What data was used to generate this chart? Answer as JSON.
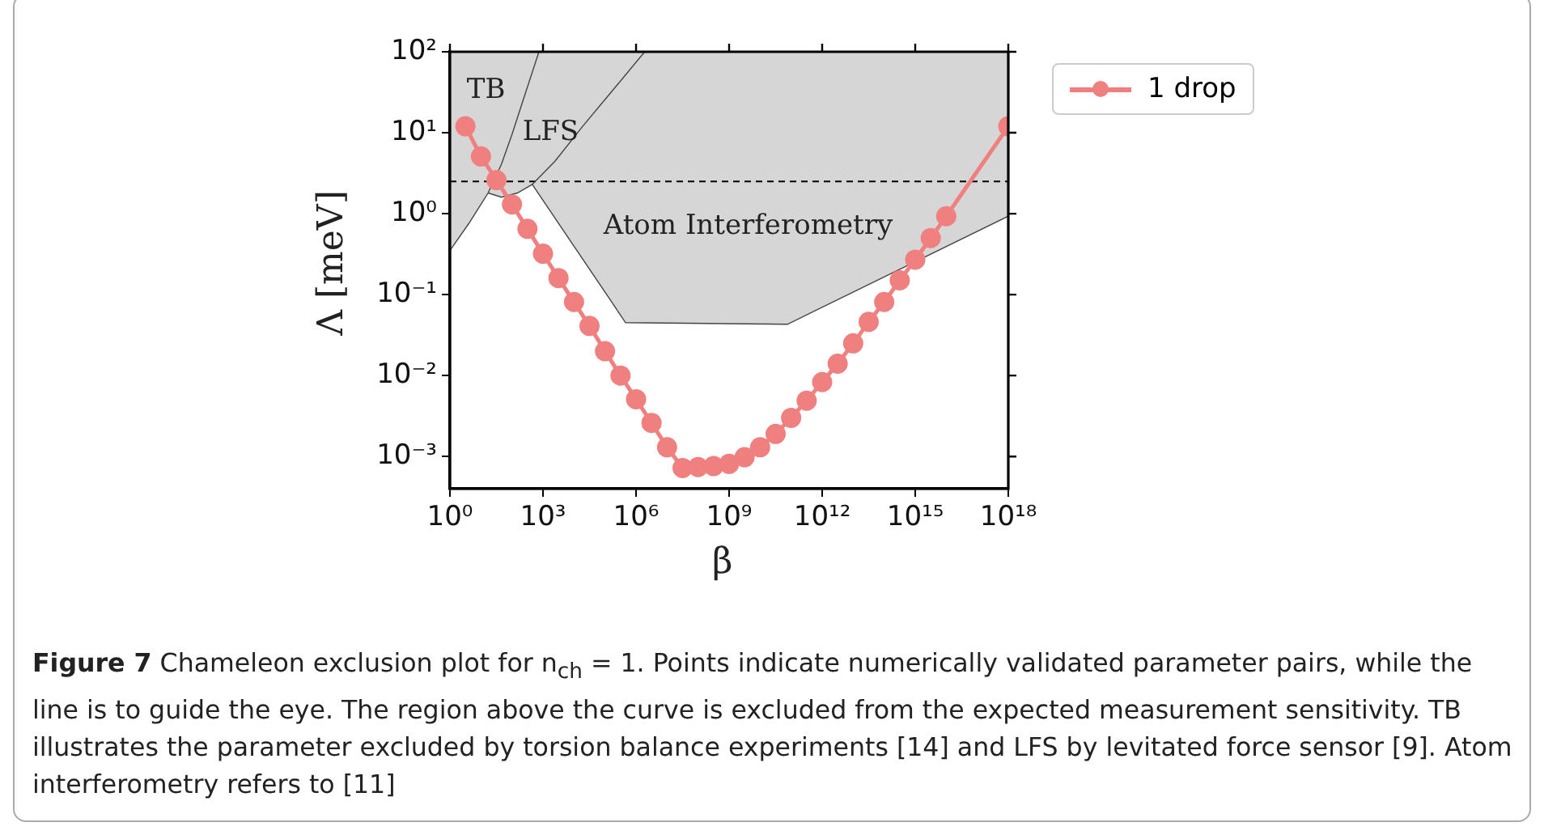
{
  "chart_data": {
    "type": "line",
    "xlabel": "β",
    "ylabel": "Λ [meV]",
    "log": "xy",
    "grid": false,
    "legend": "right",
    "marker": "circle",
    "xlim": [
      1,
      1e+18
    ],
    "ylim": [
      0.0004,
      100
    ],
    "xticks": [
      {
        "value": 1,
        "label": "10⁰"
      },
      {
        "value": 1000.0,
        "label": "10³"
      },
      {
        "value": 1000000.0,
        "label": "10⁶"
      },
      {
        "value": 1000000000.0,
        "label": "10⁹"
      },
      {
        "value": 1000000000000.0,
        "label": "10¹²"
      },
      {
        "value": 1000000000000000.0,
        "label": "10¹⁵"
      },
      {
        "value": 1e+18,
        "label": "10¹⁸"
      }
    ],
    "yticks": [
      {
        "value": 0.001,
        "label": "10⁻³"
      },
      {
        "value": 0.01,
        "label": "10⁻²"
      },
      {
        "value": 0.1,
        "label": "10⁻¹"
      },
      {
        "value": 1,
        "label": "10⁰"
      },
      {
        "value": 10,
        "label": "10¹"
      },
      {
        "value": 100,
        "label": "10²"
      }
    ],
    "series": [
      {
        "type": "area",
        "name": "TB",
        "color": "#d6d6d6",
        "marker": "none",
        "x": [
          1,
          1,
          4.1,
          17,
          46,
          100,
          280,
          740
        ],
        "values": [
          100,
          0.35,
          0.76,
          1.8,
          4.1,
          9.5,
          32,
          100
        ]
      },
      {
        "type": "area",
        "name": "LFS",
        "color": "#d6d6d6",
        "marker": "none",
        "x": [
          17,
          17,
          46,
          150,
          450,
          2500,
          19000,
          140000,
          1900000
        ],
        "values": [
          100,
          1.8,
          1.6,
          1.8,
          2.3,
          4.5,
          12,
          30,
          100
        ]
      },
      {
        "type": "area",
        "name": "Atom Interferometry",
        "color": "#d6d6d6",
        "marker": "none",
        "x": [
          450,
          450,
          460000,
          76000000000,
          1e+18,
          1e+18
        ],
        "values": [
          100,
          2.3,
          0.045,
          0.043,
          0.93,
          100
        ]
      },
      {
        "name": "1 drop",
        "color": "#f08080",
        "x": [
          3.16,
          10,
          31.6,
          100,
          316,
          1000,
          3160,
          10000,
          31600,
          100000,
          316000,
          1000000,
          3160000,
          10000000,
          31600000,
          100000000,
          316000000,
          1000000000,
          3160000000,
          10000000000,
          31600000000,
          100000000000,
          316000000000,
          1000000000000,
          3160000000000,
          10000000000000,
          31600000000000,
          100000000000000,
          316000000000000,
          1000000000000000,
          3160000000000000,
          10000000000000000,
          1000000000000000000
        ],
        "values": [
          12,
          5.1,
          2.6,
          1.3,
          0.65,
          0.32,
          0.16,
          0.081,
          0.041,
          0.02,
          0.01,
          0.0051,
          0.0026,
          0.0013,
          0.00072,
          0.00074,
          0.00076,
          0.00081,
          0.00098,
          0.0013,
          0.0019,
          0.003,
          0.0049,
          0.0083,
          0.014,
          0.025,
          0.046,
          0.081,
          0.15,
          0.27,
          0.5,
          0.93,
          12
        ]
      }
    ],
    "ref_lines": [
      {
        "axis": "y",
        "value": 2.5,
        "line_style": "dashed",
        "color": "#000000"
      }
    ],
    "annotations": [
      "Figure 7 Chameleon exclusion plot for n$_{ch}$ = 1. Points indicate numerically validated parameter pairs, while the line is to guide the eye. The region above the curve is excluded from the expected measurement sensitivity. TB illustrates the parameter excluded by torsion balance experiments [14] and LFS by levitated force sensor [9]. Atom interferometry refers to [11]"
    ]
  }
}
